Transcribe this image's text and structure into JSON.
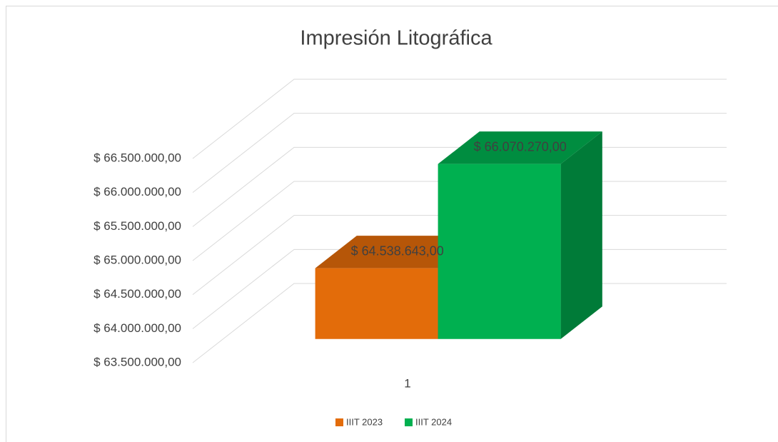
{
  "chart_data": {
    "type": "bar3d",
    "title": "Impresión Litográfica",
    "categories": [
      "1"
    ],
    "series": [
      {
        "name": "IIIT 2023",
        "color": "#e36c0a",
        "values": [
          64538643
        ],
        "value_labels": [
          "$ 64.538.643,00"
        ]
      },
      {
        "name": "IIIT 2024",
        "color": "#00b050",
        "values": [
          66070270
        ],
        "value_labels": [
          "$ 66.070.270,00"
        ]
      }
    ],
    "ylim": [
      63500000,
      66500000
    ],
    "yticks": [
      {
        "value": 63500000,
        "label": "$ 63.500.000,00"
      },
      {
        "value": 64000000,
        "label": "$ 64.000.000,00"
      },
      {
        "value": 64500000,
        "label": "$ 64.500.000,00"
      },
      {
        "value": 65000000,
        "label": "$ 65.000.000,00"
      },
      {
        "value": 65500000,
        "label": "$ 65.500.000,00"
      },
      {
        "value": 66000000,
        "label": "$ 66.000.000,00"
      },
      {
        "value": 66500000,
        "label": "$ 66.500.000,00"
      }
    ],
    "grid": true,
    "legend": "bottom"
  }
}
